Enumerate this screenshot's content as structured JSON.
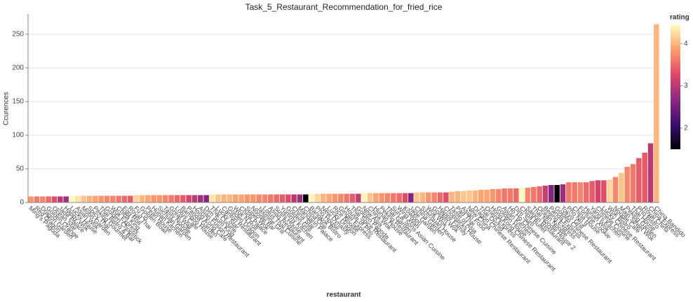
{
  "chart_data": {
    "type": "bar",
    "title": "Task_5_Restaurant_Recommendation_for_fried_rice",
    "xlabel": "restaurant",
    "ylabel": "Ccurences",
    "ylim": [
      0,
      280
    ],
    "yticks": [
      0,
      50,
      100,
      150,
      200,
      250
    ],
    "grid": true,
    "categories": [
      "Ming's Pagoda",
      "Red Dragon",
      "Dragon Garden",
      "Golden Orange",
      "Ocean Star",
      "Jade Palace",
      "Happy Wok",
      "Lucky House",
      "Asian Wok",
      "Moon Garden",
      "Spicy Thai",
      "Peking Gourmet",
      "Thai Bistro & Bar",
      "Golden Chopstick",
      "Wok Express",
      "China King",
      "Egg Roll",
      "Royal Thai",
      "Fu Lin",
      "Golden Bowl",
      "Pearl House",
      "Hunan Kitchen",
      "Sichuan Garden",
      "Tasty Noodle",
      "Great Wall",
      "Lotus Cafe",
      "Bamboo House",
      "Panda Garden",
      "Hong Kong Cafe",
      "Asian Fusion Restaurant",
      "Dim Sum King",
      "Thai Cuisine",
      "Lucky Star",
      "Canton Restaurant",
      "Golden Dragon",
      "Wok N Roll",
      "China Palace",
      "Super Wok",
      "Noodle Bar",
      "Jasmine Grill",
      "Lotus Thai Cuisine",
      "Asian Restaurant",
      "Sushi House",
      "Yummy Kitchen",
      "Golden Grill",
      "China Star",
      "Mandarin Palace",
      "China One",
      "Bangkok Bistro",
      "Pho House",
      "New Dynasty",
      "Lucky Dragon",
      "Rice Noodle",
      "Ginger Express",
      "House of Pho",
      "Thai Spice Restaurant",
      "Golden Pagoda",
      "New Asia",
      "China Wok",
      "Hunan House",
      "Peking Restaurant",
      "Thai Garden",
      "Sun & Sons Asian Cuisine",
      "Wing Wah",
      "Kowloon",
      "Jade Garden",
      "China Garden",
      "Szechuan House",
      "Wok Wok",
      "Golden Wok",
      "Happy Family",
      "Chopsticks House",
      "Taste of Asia",
      "Pad Thai",
      "Asian Food",
      "New China",
      "Dragon Chinese Restaurant",
      "Thai Orchid",
      "Orient Express",
      "Hong Kong Chinese Restaurant",
      "Golden House",
      "Asian Kitchen",
      "Ho Ho Chinese Cuisine",
      "Dim Sum",
      "China Buffet",
      "Saigon Restaurant",
      "Thai Noodle House 2",
      "Ocean Noodle",
      "Beijing Express",
      "Panda Express",
      "Golden Chinese Restaurant",
      "Tokyo Grill",
      "Pho No 9",
      "China House",
      "Fortune Cookie",
      "Hunan Wok",
      "Yang's Kitchen",
      "Chinese Cuisine",
      "Lucky Chinese Restaurant",
      "Wok Bistro",
      "Noodle Cafe",
      "Main Street Wok",
      "Peking Garden",
      "Thai House",
      "Pho Bistro",
      "Royal China",
      "China Express",
      "China Bandido"
    ],
    "values": [
      9,
      9,
      9,
      9,
      9,
      9,
      9,
      10,
      10,
      10,
      10,
      10,
      10,
      10,
      10,
      10,
      10,
      10,
      11,
      11,
      11,
      11,
      11,
      11,
      11,
      11,
      11,
      11,
      11,
      11,
      11,
      12,
      12,
      12,
      12,
      12,
      12,
      12,
      12,
      12,
      12,
      12,
      12,
      12,
      12,
      12,
      12,
      12,
      13,
      13,
      13,
      13,
      13,
      13,
      13,
      13,
      13,
      14,
      14,
      14,
      14,
      14,
      14,
      14,
      14,
      14,
      15,
      15,
      15,
      15,
      15,
      15,
      16,
      17,
      17,
      18,
      18,
      19,
      19,
      20,
      20,
      21,
      21,
      21,
      22,
      22,
      23,
      24,
      25,
      26,
      26,
      27,
      30,
      30,
      30,
      30,
      32,
      33,
      33,
      34,
      38,
      44,
      53,
      57,
      66,
      74,
      88,
      265
    ],
    "color_values": [
      3.8,
      3.6,
      3.7,
      3.5,
      3.3,
      3.0,
      2.8,
      4.5,
      4.3,
      4.1,
      4.0,
      3.9,
      3.8,
      3.7,
      3.7,
      3.6,
      3.5,
      3.4,
      4.2,
      4.0,
      3.9,
      3.8,
      3.8,
      3.7,
      3.6,
      3.5,
      3.4,
      3.2,
      3.0,
      2.8,
      2.6,
      4.3,
      4.1,
      4.0,
      4.0,
      3.9,
      3.9,
      3.8,
      3.8,
      3.7,
      3.7,
      3.6,
      3.5,
      3.4,
      3.3,
      3.0,
      2.8,
      1.5,
      4.4,
      4.2,
      4.0,
      3.9,
      3.8,
      3.7,
      3.6,
      3.4,
      3.1,
      4.4,
      4.1,
      3.9,
      3.8,
      3.7,
      3.6,
      3.5,
      3.3,
      2.6,
      4.1,
      4.0,
      3.8,
      3.7,
      3.5,
      3.3,
      4.0,
      4.0,
      4.1,
      4.1,
      4.0,
      3.9,
      3.9,
      3.8,
      3.7,
      3.6,
      3.6,
      3.5,
      4.5,
      3.7,
      3.6,
      3.5,
      3.1,
      2.6,
      1.5,
      2.8,
      3.6,
      3.6,
      3.7,
      3.5,
      3.4,
      3.2,
      3.3,
      4.2,
      3.7,
      4.1,
      3.7,
      3.6,
      3.4,
      3.4,
      3.0,
      4.0
    ],
    "colorbar": {
      "title": "rating",
      "clim": [
        1.5,
        4.45
      ],
      "ticks": [
        2,
        3,
        4
      ],
      "colormap": [
        "#000004",
        "#3b0f70",
        "#8c2981",
        "#de4968",
        "#fe9f6d",
        "#fcfdbf"
      ]
    }
  }
}
